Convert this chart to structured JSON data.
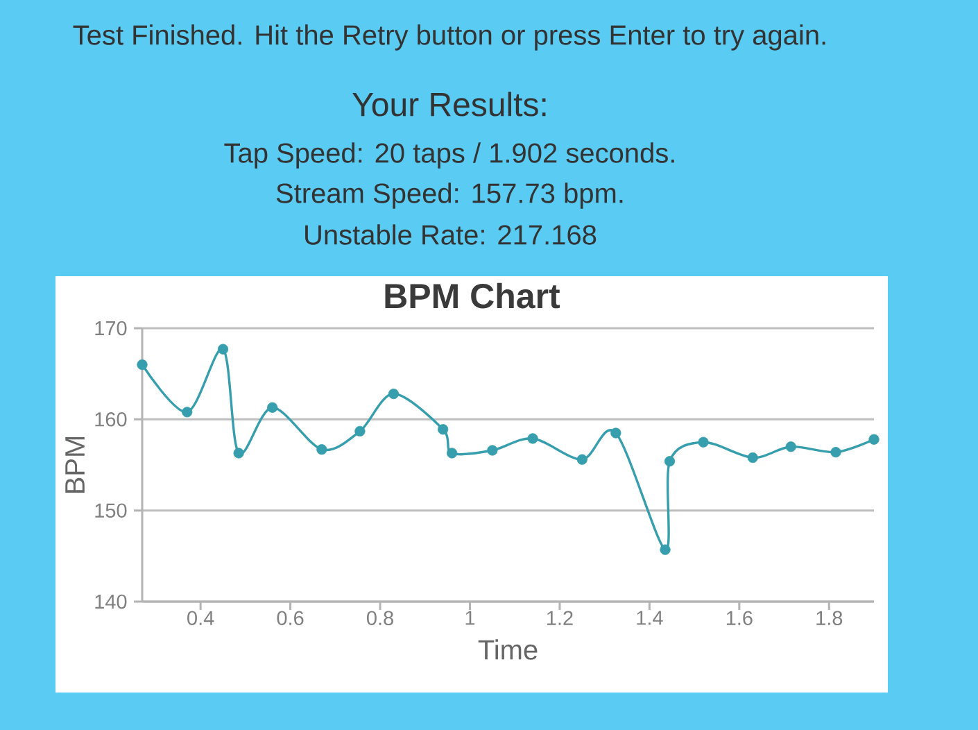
{
  "chart_data": {
    "type": "line",
    "title": "BPM Chart",
    "xlabel": "Time",
    "ylabel": "BPM",
    "annotations": [
      "Test Finished. Hit the Retry button or press Enter to try again.",
      "Your Results:",
      "Tap Speed: 20 taps / 1.902 seconds.",
      "Stream Speed: 157.73 bpm.",
      "Unstable Rate: 217.168"
    ],
    "x": [
      0.27,
      0.37,
      0.45,
      0.485,
      0.56,
      0.67,
      0.755,
      0.83,
      0.94,
      0.96,
      1.05,
      1.14,
      1.25,
      1.325,
      1.435,
      1.445,
      1.52,
      1.63,
      1.715,
      1.815,
      1.9
    ],
    "values": [
      166.0,
      160.8,
      167.7,
      156.3,
      161.3,
      156.7,
      158.7,
      162.8,
      158.9,
      156.3,
      156.6,
      157.9,
      155.6,
      158.5,
      145.7,
      155.4,
      157.5,
      155.8,
      157.0,
      156.4,
      157.8
    ],
    "color": "#369ead",
    "xlim": [
      0.27,
      1.9
    ],
    "ylim": [
      140,
      170
    ],
    "xticks": [
      0.4,
      0.6,
      0.8,
      1,
      1.2,
      1.4,
      1.6,
      1.8
    ],
    "yticks": [
      140,
      150,
      160,
      170
    ],
    "grid": "y",
    "marker": "circle"
  }
}
